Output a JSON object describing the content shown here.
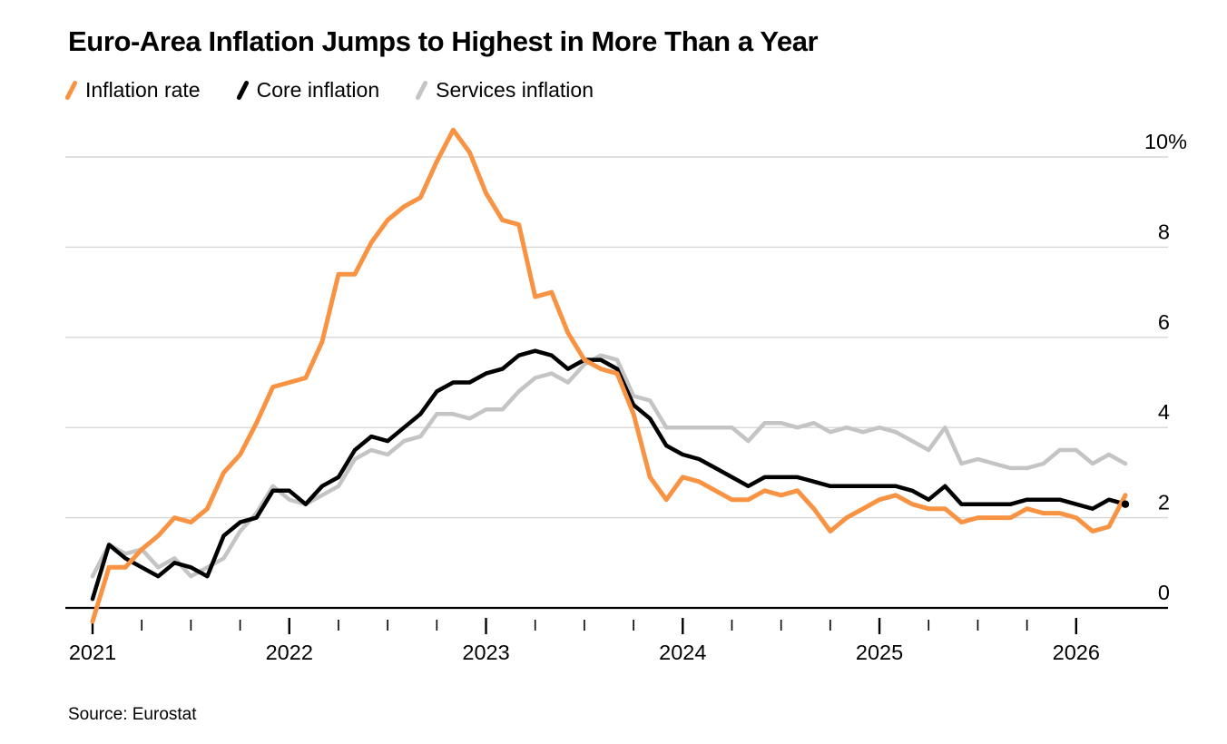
{
  "header": {
    "title": "Euro-Area Inflation Jumps to Highest in More Than a Year"
  },
  "legend": [
    {
      "label": "Inflation rate",
      "color": "#f79342"
    },
    {
      "label": "Core inflation",
      "color": "#000000"
    },
    {
      "label": "Services inflation",
      "color": "#c4c4c4"
    }
  ],
  "source": "Source: Eurostat",
  "chart_data": {
    "type": "line",
    "title": "Euro-Area Inflation Jumps to Highest in More Than a Year",
    "frequency": "monthly",
    "x_start": "2020-12",
    "x_end": "2026-03",
    "x_tick_labels": [
      "2021",
      "2022",
      "2023",
      "2024",
      "2025",
      "2026"
    ],
    "y_ticks": [
      10,
      8,
      6,
      4,
      2,
      0
    ],
    "y_tick_labels": [
      "10%",
      "8",
      "6",
      "4",
      "2",
      "0"
    ],
    "ylim": [
      -0.5,
      10.7
    ],
    "grid": "horizontal",
    "legend_position": "top-left",
    "colors": {
      "grid": "#d6d6d6",
      "axis": "#000000"
    },
    "series": [
      {
        "name": "Inflation rate",
        "color": "#f79342",
        "values": [
          -0.3,
          0.9,
          0.9,
          1.3,
          1.6,
          2.0,
          1.9,
          2.2,
          3.0,
          3.4,
          4.1,
          4.9,
          5.0,
          5.1,
          5.9,
          7.4,
          7.4,
          8.1,
          8.6,
          8.9,
          9.1,
          9.9,
          10.6,
          10.1,
          9.2,
          8.6,
          8.5,
          6.9,
          7.0,
          6.1,
          5.5,
          5.3,
          5.2,
          4.3,
          2.9,
          2.4,
          2.9,
          2.8,
          2.6,
          2.4,
          2.4,
          2.6,
          2.5,
          2.6,
          2.2,
          1.7,
          2.0,
          2.2,
          2.4,
          2.5,
          2.3,
          2.2,
          2.2,
          1.9,
          2.0,
          2.0,
          2.0,
          2.2,
          2.1,
          2.1,
          2.0,
          1.7,
          1.8,
          2.5
        ]
      },
      {
        "name": "Core inflation",
        "color": "#000000",
        "end_dot": true,
        "values": [
          0.2,
          1.4,
          1.1,
          0.9,
          0.7,
          1.0,
          0.9,
          0.7,
          1.6,
          1.9,
          2.0,
          2.6,
          2.6,
          2.3,
          2.7,
          2.9,
          3.5,
          3.8,
          3.7,
          4.0,
          4.3,
          4.8,
          5.0,
          5.0,
          5.2,
          5.3,
          5.6,
          5.7,
          5.6,
          5.3,
          5.5,
          5.5,
          5.3,
          4.5,
          4.2,
          3.6,
          3.4,
          3.3,
          3.1,
          2.9,
          2.7,
          2.9,
          2.9,
          2.9,
          2.8,
          2.7,
          2.7,
          2.7,
          2.7,
          2.7,
          2.6,
          2.4,
          2.7,
          2.3,
          2.3,
          2.3,
          2.3,
          2.4,
          2.4,
          2.4,
          2.3,
          2.2,
          2.4,
          2.3
        ]
      },
      {
        "name": "Services inflation",
        "color": "#c4c4c4",
        "values": [
          0.7,
          1.4,
          1.2,
          1.3,
          0.9,
          1.1,
          0.7,
          0.9,
          1.1,
          1.7,
          2.1,
          2.7,
          2.4,
          2.3,
          2.5,
          2.7,
          3.3,
          3.5,
          3.4,
          3.7,
          3.8,
          4.3,
          4.3,
          4.2,
          4.4,
          4.4,
          4.8,
          5.1,
          5.2,
          5.0,
          5.4,
          5.6,
          5.5,
          4.7,
          4.6,
          4.0,
          4.0,
          4.0,
          4.0,
          4.0,
          3.7,
          4.1,
          4.1,
          4.0,
          4.1,
          3.9,
          4.0,
          3.9,
          4.0,
          3.9,
          3.7,
          3.5,
          4.0,
          3.2,
          3.3,
          3.2,
          3.1,
          3.1,
          3.2,
          3.5,
          3.5,
          3.2,
          3.4,
          3.2
        ]
      }
    ]
  }
}
